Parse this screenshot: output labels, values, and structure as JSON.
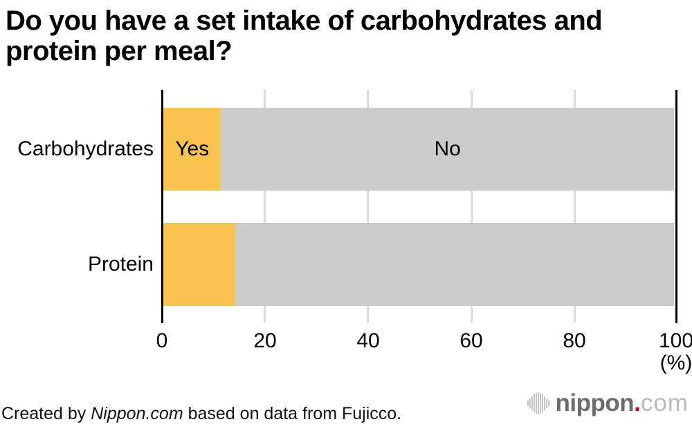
{
  "title_lines": [
    "Do you have a set intake of carbohydrates and",
    "protein per meal?"
  ],
  "chart_data": {
    "type": "bar",
    "orientation": "horizontal",
    "stacked": true,
    "title": "Do you have a set intake of carbohydrates and protein per meal?",
    "categories": [
      "Carbohydrates",
      "Protein"
    ],
    "series": [
      {
        "name": "Yes",
        "values": [
          11.3,
          14.1
        ],
        "color": "#f8c44d"
      },
      {
        "name": "No",
        "values": [
          88.7,
          85.9
        ],
        "color": "#cccccc"
      }
    ],
    "xlim": [
      0,
      100
    ],
    "ticks": [
      "0",
      "20",
      "40",
      "60",
      "80",
      "100"
    ],
    "unit_label": "(%)",
    "grid": true,
    "gridline_color": "#dcdcdc",
    "axis_color": "#000000",
    "legend": "none (segment labels 'Yes'/'No' shown inside top bar only)"
  },
  "footer": {
    "credit_prefix": "Created by ",
    "credit_source": "Nippon.com",
    "credit_suffix": " based on data from Fujicco."
  },
  "logo": {
    "icon": "soundwave-icon",
    "name": "nippon",
    "dot": ".",
    "tld": "com",
    "name_color": "#6b6b6b",
    "dot_color": "#e60012",
    "tld_color": "#b9b9b9",
    "icon_color": "#c4c4c4"
  }
}
